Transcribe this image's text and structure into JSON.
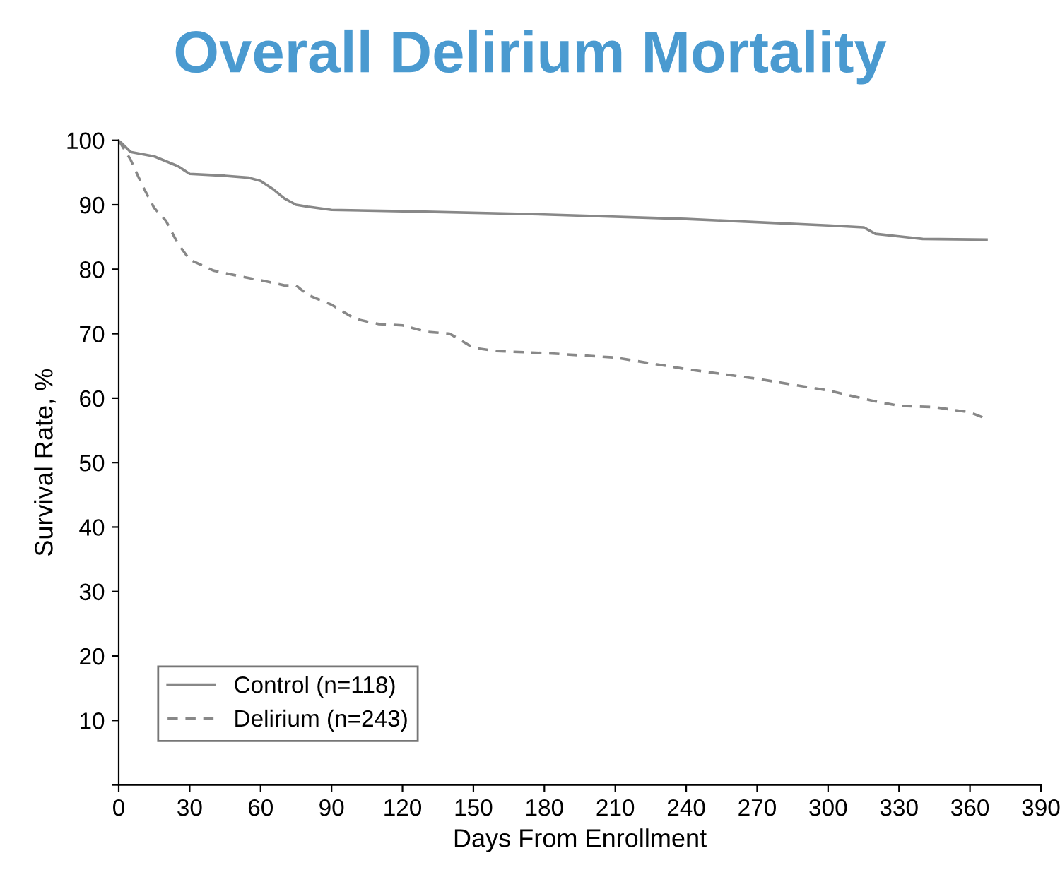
{
  "chart_data": {
    "type": "line",
    "title": "Overall Delirium Mortality",
    "xlabel": "Days From Enrollment",
    "ylabel": "Survival Rate, %",
    "xlim": [
      0,
      390
    ],
    "xticks": [
      0,
      30,
      60,
      90,
      120,
      150,
      180,
      210,
      240,
      270,
      300,
      330,
      360,
      390
    ],
    "ylim": [
      0,
      100
    ],
    "yticks": [
      {
        "value": 0,
        "label": null
      },
      10,
      20,
      30,
      40,
      50,
      60,
      70,
      80,
      90,
      100
    ],
    "grid": false,
    "legend": "bottom left",
    "series": [
      {
        "name": "Control (n=118)",
        "color": "#888888",
        "line_style": "solid",
        "x": [
          0,
          5,
          15,
          25,
          30,
          45,
          55,
          60,
          65,
          70,
          75,
          80,
          90,
          120,
          180,
          240,
          300,
          315,
          320,
          340,
          367
        ],
        "values": [
          100,
          98.2,
          97.5,
          96,
          94.8,
          94.5,
          94.2,
          93.7,
          92.5,
          91,
          90,
          89.7,
          89.2,
          89,
          88.5,
          87.8,
          86.8,
          86.5,
          85.5,
          84.7,
          84.6
        ]
      },
      {
        "name": "Delirium (n=243)",
        "color": "#888888",
        "line_style": "dashed",
        "x": [
          0,
          5,
          10,
          15,
          20,
          25,
          30,
          40,
          50,
          60,
          70,
          75,
          80,
          90,
          100,
          110,
          120,
          130,
          140,
          150,
          160,
          180,
          210,
          240,
          270,
          300,
          320,
          330,
          345,
          360,
          367
        ],
        "values": [
          100,
          97,
          93,
          89.5,
          87.5,
          84,
          81.5,
          79.8,
          79,
          78.3,
          77.5,
          77.5,
          76,
          74.5,
          72.3,
          71.5,
          71.3,
          70.3,
          70,
          67.8,
          67.3,
          67,
          66.3,
          64.5,
          63,
          61.2,
          59.5,
          58.8,
          58.6,
          57.8,
          56.8
        ]
      }
    ]
  }
}
